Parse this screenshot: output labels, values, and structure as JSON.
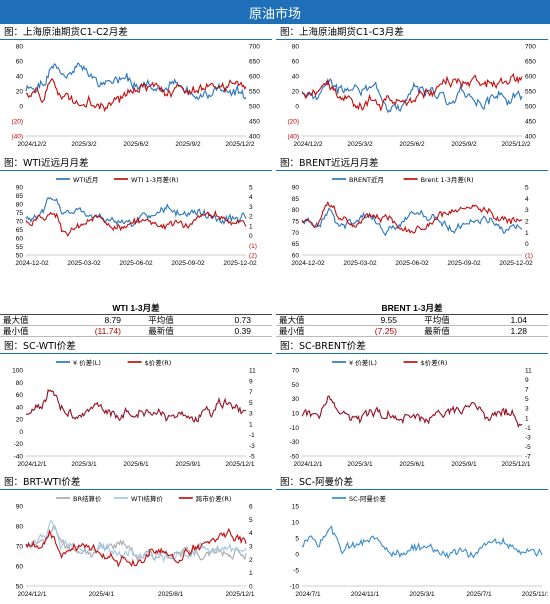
{
  "page": {
    "banner": "原油市场"
  },
  "charts": [
    {
      "title": "图：上海原油期货C1-C2月差",
      "chart_data": {
        "type": "line",
        "series": [
          {
            "axis": "left",
            "color": "#1f6fb8",
            "seed": 1,
            "values_desc": "C1-C2"
          },
          {
            "axis": "right",
            "color": "#c00000",
            "seed": 2
          }
        ],
        "xticks": [
          "2024/12/2",
          "2025/3/2",
          "2025/6/2",
          "2025/9/2",
          "2025/12/2"
        ],
        "yticks_left": [
          "80",
          "60",
          "40",
          "20",
          "0",
          "(20)",
          "(40)"
        ],
        "ylim_left": [
          -40,
          80
        ],
        "yticks_right": [
          "700",
          "650",
          "600",
          "550",
          "500",
          "450",
          "400"
        ],
        "ylim_right": [
          400,
          700
        ]
      }
    },
    {
      "title": "图：上海原油期货C1-C3月差",
      "chart_data": {
        "type": "line",
        "series": [
          {
            "axis": "left",
            "color": "#1f6fb8",
            "seed": 3
          },
          {
            "axis": "right",
            "color": "#c00000",
            "seed": 4
          }
        ],
        "xticks": [
          "2024/12/2",
          "2025/3/2",
          "2025/6/2",
          "2025/9/2",
          "2025/12/2"
        ],
        "yticks_left": [
          "80",
          "60",
          "40",
          "20",
          "0",
          "(20)",
          "(40)"
        ],
        "ylim_left": [
          -40,
          80
        ],
        "yticks_right": [
          "700",
          "650",
          "600",
          "550",
          "500",
          "450",
          "400"
        ],
        "ylim_right": [
          400,
          700
        ]
      }
    },
    {
      "title": "图：WTI近远月月差",
      "chart_data": {
        "type": "line",
        "legend": [
          "WTI近月",
          "WTI 1-3月差(R)"
        ],
        "series": [
          {
            "name": "WTI近月",
            "axis": "left",
            "color": "#1f6fb8",
            "seed": 5
          },
          {
            "name": "WTI 1-3月差(R)",
            "axis": "right",
            "color": "#c00000",
            "seed": 6
          }
        ],
        "xticks": [
          "2024-12-02",
          "2025-03-02",
          "2025-06-02",
          "2025-09-02",
          "2025-12-02"
        ],
        "yticks_left": [
          "90",
          "85",
          "80",
          "75",
          "70",
          "65",
          "60",
          "55",
          "50"
        ],
        "ylim_left": [
          50,
          90
        ],
        "yticks_right": [
          "5",
          "4",
          "3",
          "2",
          "1",
          "0",
          "(1)",
          "(2)"
        ],
        "ylim_right": [
          -2,
          5
        ]
      }
    },
    {
      "title": "图：BRENT近远月月差",
      "chart_data": {
        "type": "line",
        "legend": [
          "BRENT近月",
          "Brent 1-3月差(R)"
        ],
        "series": [
          {
            "name": "BRENT近月",
            "axis": "left",
            "color": "#1f6fb8",
            "seed": 7
          },
          {
            "name": "Brent 1-3月差(R)",
            "axis": "right",
            "color": "#c00000",
            "seed": 8
          }
        ],
        "xticks": [
          "2024-12-02",
          "2025-03-02",
          "2025-06-02",
          "2025-09-02",
          "2025-12-02"
        ],
        "yticks_left": [
          "90",
          "85",
          "80",
          "75",
          "70",
          "65",
          "60"
        ],
        "ylim_left": [
          60,
          90
        ],
        "yticks_right": [
          "5",
          "4",
          "3",
          "2",
          "1",
          "0",
          "(1)"
        ],
        "ylim_right": [
          -1,
          5
        ]
      }
    },
    {
      "title": "图：SC-WTI价差",
      "chart_data": {
        "type": "line",
        "legend": [
          "¥ 价差(L)",
          "$价差(R)"
        ],
        "series": [
          {
            "name": "¥ 价差(L)",
            "axis": "left",
            "color": "#1f6fb8",
            "seed": 9
          },
          {
            "name": "$价差(R)",
            "axis": "right",
            "color": "#c00000",
            "seed": 9
          }
        ],
        "xticks": [
          "2024/12/1",
          "2025/3/1",
          "2025/6/1",
          "2025/9/1",
          "2025/12/1"
        ],
        "yticks_left": [
          "100",
          "80",
          "60",
          "40",
          "20",
          "0",
          "-20",
          "-40"
        ],
        "ylim_left": [
          -40,
          100
        ],
        "yticks_right": [
          "11",
          "9",
          "7",
          "5",
          "3",
          "1",
          "-1",
          "-3",
          "-5"
        ],
        "ylim_right": [
          -5,
          11
        ]
      }
    },
    {
      "title": "图：SC-BRENT价差",
      "chart_data": {
        "type": "line",
        "legend": [
          "¥ 价差(L)",
          "$价差(R)"
        ],
        "series": [
          {
            "name": "¥ 价差(L)",
            "axis": "left",
            "color": "#1f6fb8",
            "seed": 10
          },
          {
            "name": "$价差(R)",
            "axis": "right",
            "color": "#c00000",
            "seed": 10
          }
        ],
        "xticks": [
          "2024/12/1",
          "2025/3/1",
          "2025/6/1",
          "2025/9/1",
          "2025/12/1"
        ],
        "yticks_left": [
          "70",
          "50",
          "30",
          "10",
          "-10",
          "-30",
          "-50"
        ],
        "ylim_left": [
          -50,
          70
        ],
        "yticks_right": [
          "11",
          "9",
          "7",
          "5",
          "3",
          "1",
          "-1",
          "-3",
          "-5",
          "-7"
        ],
        "ylim_right": [
          -7,
          11
        ]
      }
    },
    {
      "title": "图：BRT-WTI价差",
      "chart_data": {
        "type": "line",
        "legend": [
          "BR结算价",
          "WTI结算价",
          "跨市价差(R)"
        ],
        "series": [
          {
            "name": "BR结算价",
            "axis": "left",
            "color": "#a6a6a6",
            "seed": 11
          },
          {
            "name": "WTI结算价",
            "axis": "left",
            "color": "#9dc3e6",
            "seed": 12
          },
          {
            "name": "跨市价差(R)",
            "axis": "right",
            "color": "#c00000",
            "seed": 13
          }
        ],
        "xticks": [
          "2024/12/1",
          "2025/4/1",
          "2025/8/1",
          "2025/12/1"
        ],
        "yticks_left": [
          "90",
          "80",
          "70",
          "60",
          "50"
        ],
        "ylim_left": [
          50,
          90
        ],
        "yticks_right": [
          "6",
          "5",
          "4",
          "3",
          "2",
          "1",
          "0"
        ],
        "ylim_right": [
          0,
          6
        ]
      }
    },
    {
      "title": "图：SC-阿曼价差",
      "chart_data": {
        "type": "line",
        "legend": [
          "SC-阿曼价差"
        ],
        "series": [
          {
            "name": "SC-阿曼价差",
            "axis": "left",
            "color": "#2e86c8",
            "seed": 14
          }
        ],
        "xticks": [
          "2024/7/1",
          "2024/11/1",
          "2025/3/1",
          "2025/7/1",
          "2025/11/1"
        ],
        "yticks_left": [
          "15",
          "10",
          "5",
          "0",
          "-5",
          "-10"
        ],
        "ylim_left": [
          -10,
          15
        ]
      }
    }
  ],
  "stats": [
    {
      "title": "WTI 1-3月差",
      "rows": [
        [
          "最大值",
          "8.79",
          "平均值",
          "0.73"
        ],
        [
          "最小值",
          "(11.74)",
          "最新值",
          "0.39"
        ]
      ]
    },
    {
      "title": "BRENT 1-3月差",
      "rows": [
        [
          "最大值",
          "9.55",
          "平均值",
          "1.04"
        ],
        [
          "最小值",
          "(7.25)",
          "最新值",
          "1.28"
        ]
      ]
    }
  ]
}
